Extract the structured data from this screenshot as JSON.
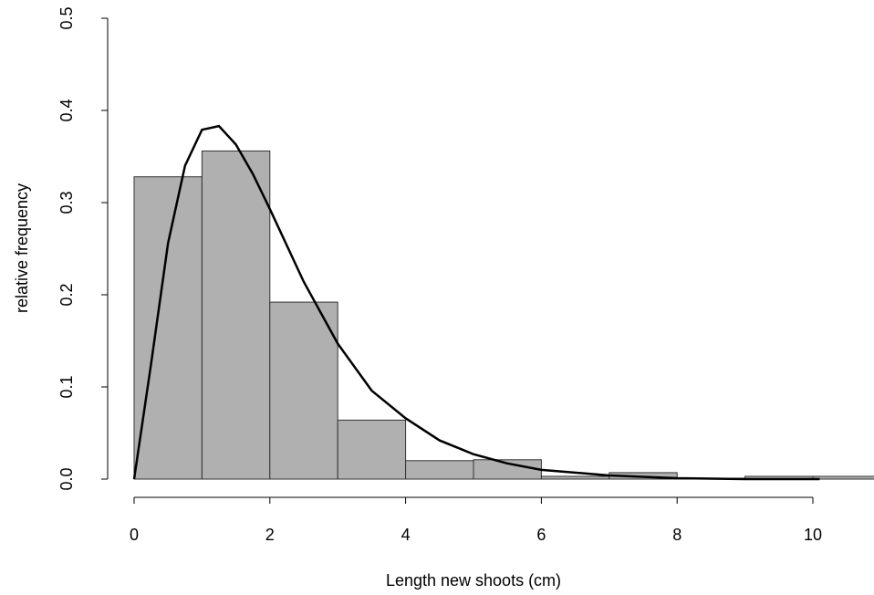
{
  "chart_data": {
    "type": "histogram",
    "x_label": "Length new shoots (cm)",
    "y_label": "relative frequency",
    "bins": [
      0,
      1,
      2,
      3,
      4,
      5,
      6,
      7,
      8,
      9,
      10,
      11
    ],
    "values": [
      0.328,
      0.356,
      0.192,
      0.064,
      0.02,
      0.021,
      0.003,
      0.007,
      0.001,
      0.003,
      0.003
    ],
    "color": "#b0b0b0",
    "density_curve": {
      "x": [
        0,
        0.25,
        0.5,
        0.75,
        1,
        1.25,
        1.5,
        1.75,
        2,
        2.5,
        3,
        3.5,
        4,
        4.5,
        5,
        5.5,
        6,
        7,
        8,
        9,
        10.1
      ],
      "values": [
        0,
        0.125,
        0.256,
        0.34,
        0.379,
        0.383,
        0.363,
        0.331,
        0.293,
        0.214,
        0.147,
        0.096,
        0.066,
        0.042,
        0.027,
        0.017,
        0.01,
        0.004,
        0.001,
        0,
        0
      ],
      "color": "#000000"
    },
    "xlim": [
      0,
      10
    ],
    "ylim": [
      0,
      0.5
    ],
    "xticks": [
      0,
      2,
      4,
      6,
      8,
      10
    ],
    "yticks": [
      {
        "value": 0,
        "label": "0.0"
      },
      0.1,
      0.2,
      0.3,
      0.4,
      0.5
    ]
  }
}
